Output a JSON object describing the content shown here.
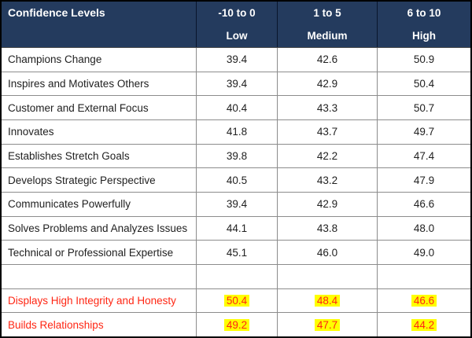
{
  "table": {
    "header": {
      "title": "Confidence Levels",
      "columns": [
        {
          "range": "-10 to 0",
          "level": "Low"
        },
        {
          "range": "1 to 5",
          "level": "Medium"
        },
        {
          "range": "6 to 10",
          "level": "High"
        }
      ]
    },
    "rows": [
      {
        "label": "Champions Change",
        "values": [
          "39.4",
          "42.6",
          "50.9"
        ],
        "highlight": false
      },
      {
        "label": "Inspires and Motivates Others",
        "values": [
          "39.4",
          "42.9",
          "50.4"
        ],
        "highlight": false
      },
      {
        "label": "Customer and External Focus",
        "values": [
          "40.4",
          "43.3",
          "50.7"
        ],
        "highlight": false
      },
      {
        "label": "Innovates",
        "values": [
          "41.8",
          "43.7",
          "49.7"
        ],
        "highlight": false
      },
      {
        "label": "Establishes Stretch Goals",
        "values": [
          "39.8",
          "42.2",
          "47.4"
        ],
        "highlight": false
      },
      {
        "label": "Develops Strategic Perspective",
        "values": [
          "40.5",
          "43.2",
          "47.9"
        ],
        "highlight": false
      },
      {
        "label": "Communicates Powerfully",
        "values": [
          "39.4",
          "42.9",
          "46.6"
        ],
        "highlight": false
      },
      {
        "label": "Solves Problems and Analyzes Issues",
        "values": [
          "44.1",
          "43.8",
          "48.0"
        ],
        "highlight": false
      },
      {
        "label": "Technical or Professional Expertise",
        "values": [
          "45.1",
          "46.0",
          "49.0"
        ],
        "highlight": false
      },
      {
        "label": "",
        "values": [
          "",
          "",
          ""
        ],
        "highlight": false
      },
      {
        "label": "Displays High Integrity and Honesty",
        "values": [
          "50.4",
          "48.4",
          "46.6"
        ],
        "highlight": true
      },
      {
        "label": "Builds Relationships",
        "values": [
          "49.2",
          "47.7",
          "44.2"
        ],
        "highlight": true
      }
    ],
    "colors": {
      "header_bg": "#243b5e",
      "header_text": "#ffffff",
      "body_text": "#1f1f1f",
      "grid_line": "#8c8c8c",
      "outer_border": "#000000",
      "red": "#ff2613",
      "yellow": "#ffff00"
    }
  },
  "chart_data": {
    "type": "table",
    "title": "Confidence Levels",
    "columns": [
      "Confidence Levels",
      "-10 to 0 (Low)",
      "1 to 5 (Medium)",
      "6 to 10 (High)"
    ],
    "categories": [
      "Champions Change",
      "Inspires and Motivates Others",
      "Customer and External Focus",
      "Innovates",
      "Establishes Stretch Goals",
      "Develops Strategic Perspective",
      "Communicates Powerfully",
      "Solves Problems and Analyzes Issues",
      "Technical or Professional Expertise",
      "Displays High Integrity and Honesty",
      "Builds Relationships"
    ],
    "series": [
      {
        "name": "-10 to 0 (Low)",
        "values": [
          39.4,
          39.4,
          40.4,
          41.8,
          39.8,
          40.5,
          39.4,
          44.1,
          45.1,
          50.4,
          49.2
        ]
      },
      {
        "name": "1 to 5 (Medium)",
        "values": [
          42.6,
          42.9,
          43.3,
          43.7,
          42.2,
          43.2,
          42.9,
          43.8,
          46.0,
          48.4,
          47.7
        ]
      },
      {
        "name": "6 to 10 (High)",
        "values": [
          50.9,
          50.4,
          50.7,
          49.7,
          47.4,
          47.9,
          46.6,
          48.0,
          49.0,
          46.6,
          44.2
        ]
      }
    ],
    "highlighted_rows": [
      "Displays High Integrity and Honesty",
      "Builds Relationships"
    ]
  }
}
